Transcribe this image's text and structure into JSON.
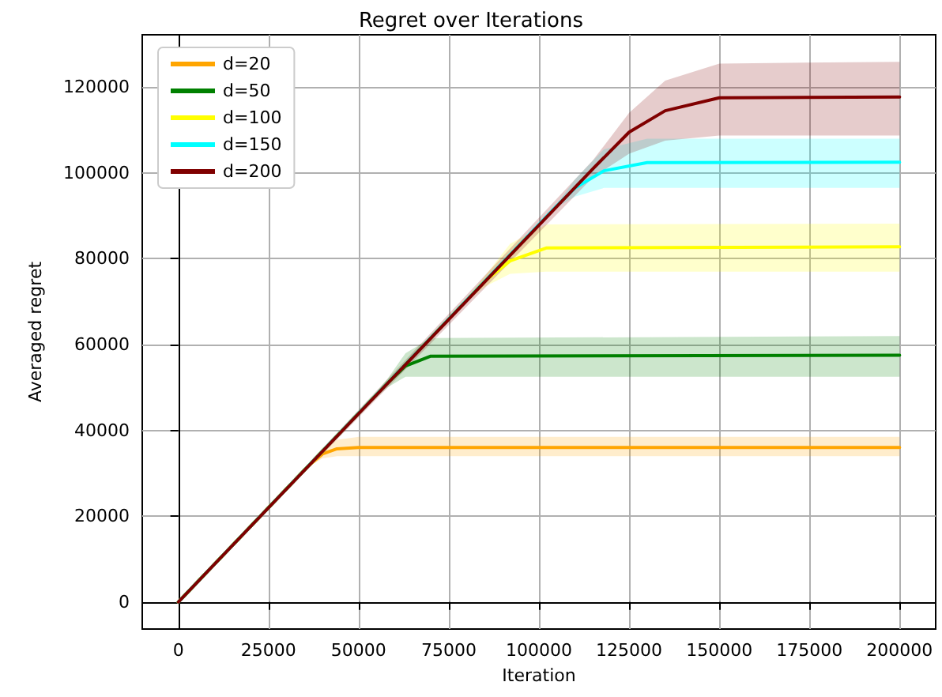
{
  "chart_data": {
    "type": "line",
    "title": "Regret over Iterations",
    "xlabel": "Iteration",
    "ylabel": "Averaged regret",
    "xlim": [
      -10000,
      210000
    ],
    "xticks": [
      0,
      25000,
      50000,
      75000,
      100000,
      125000,
      150000,
      175000,
      200000
    ],
    "ylim": [
      -6300,
      132200
    ],
    "yticks": [
      0,
      20000,
      40000,
      60000,
      80000,
      100000,
      120000
    ],
    "grid": true,
    "legend": "top left",
    "marker": "none",
    "line_style": "solid",
    "series": [
      {
        "name": "d=20",
        "color": "#ffa500",
        "x": [
          0,
          36000,
          40000,
          44000,
          50000,
          200000
        ],
        "values": [
          0,
          31700,
          34500,
          35700,
          36000,
          36000
        ],
        "lower": [
          0,
          31500,
          33500,
          34000,
          34000,
          34000
        ],
        "upper": [
          0,
          32000,
          36000,
          37800,
          38500,
          38500
        ]
      },
      {
        "name": "d=50",
        "color": "#008000",
        "x": [
          0,
          54000,
          58000,
          63000,
          70000,
          200000
        ],
        "values": [
          0,
          47500,
          51000,
          55000,
          57300,
          57500
        ],
        "lower": [
          0,
          47000,
          50000,
          52500,
          52500,
          52500
        ],
        "upper": [
          0,
          48000,
          52000,
          58000,
          61500,
          62000
        ]
      },
      {
        "name": "d=100",
        "color": "#ffff00",
        "x": [
          0,
          80000,
          85000,
          92000,
          102000,
          200000
        ],
        "values": [
          0,
          70400,
          74800,
          79500,
          82500,
          82800
        ],
        "lower": [
          0,
          70000,
          73500,
          76500,
          77000,
          77000
        ],
        "upper": [
          0,
          70800,
          76000,
          83500,
          88000,
          88200
        ]
      },
      {
        "name": "d=150",
        "color": "#00ffff",
        "x": [
          0,
          105000,
          110000,
          118000,
          130000,
          200000
        ],
        "values": [
          0,
          92400,
          96500,
          100500,
          102400,
          102500
        ],
        "lower": [
          0,
          92000,
          94500,
          96500,
          96500,
          96500
        ],
        "upper": [
          0,
          92800,
          98500,
          105500,
          108000,
          108000
        ]
      },
      {
        "name": "d=200",
        "color": "#800000",
        "x": [
          0,
          115000,
          125000,
          135000,
          150000,
          200000
        ],
        "values": [
          0,
          101000,
          109500,
          114500,
          117500,
          117700
        ],
        "lower": [
          0,
          99000,
          104500,
          107500,
          108700,
          108700
        ],
        "upper": [
          0,
          103000,
          114000,
          121500,
          125500,
          125900
        ]
      }
    ]
  }
}
